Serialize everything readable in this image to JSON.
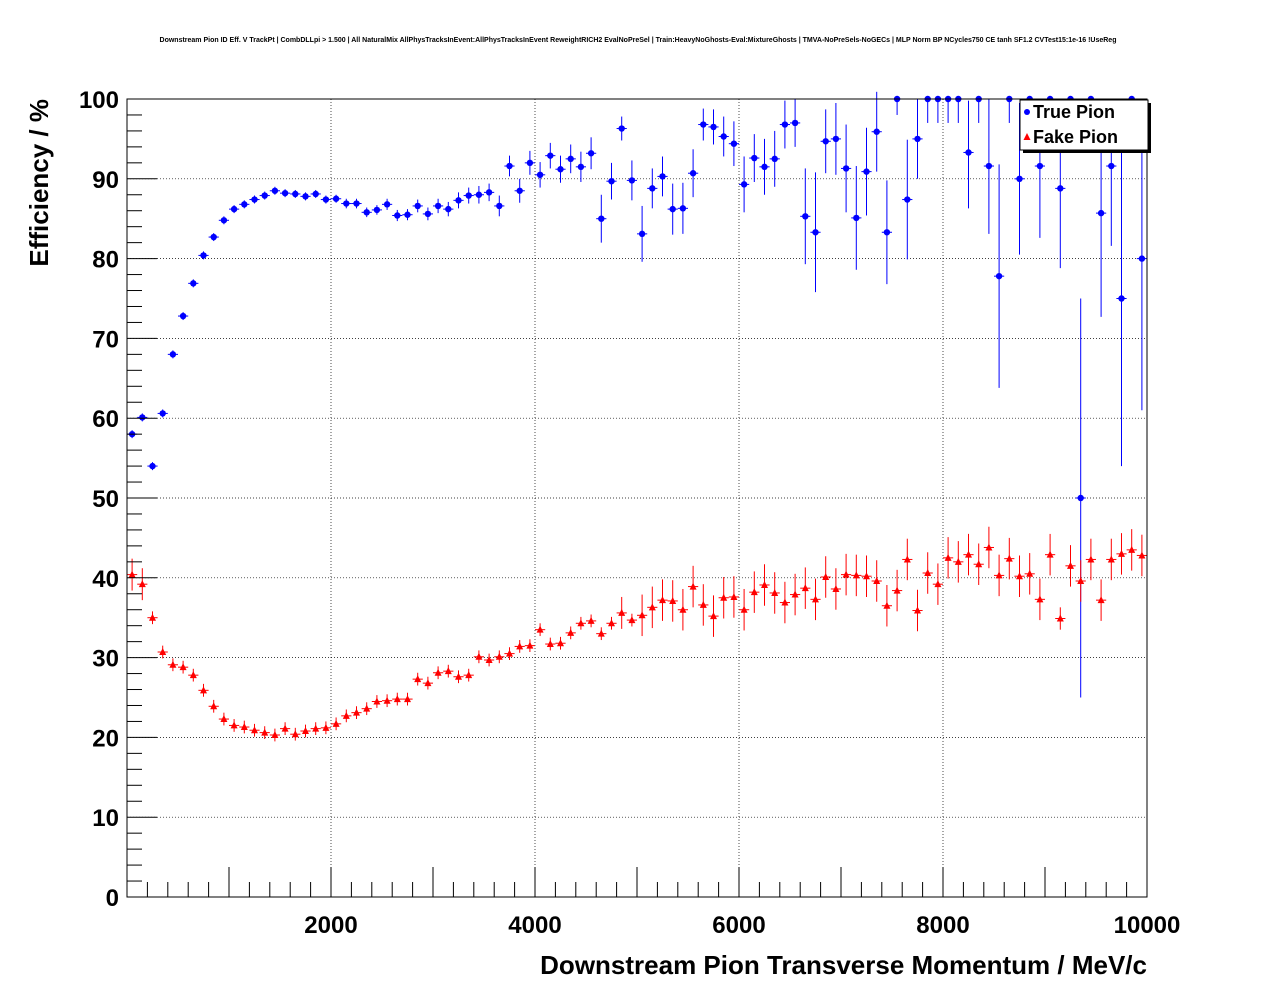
{
  "chart_data": {
    "type": "scatter",
    "title": "Downstream Pion ID Eff. V TrackPt | CombDLLpi > 1.500 | All NaturalMix AllPhysTracksInEvent:AllPhysTracksInEvent ReweightRICH2 EvalNoPreSel | Train:HeavyNoGhosts-Eval:MixtureGhosts | TMVA-NoPreSels-NoGECs | MLP Norm BP NCycles750 CE tanh SF1.2 CVTest15:1e-16 !UseReg",
    "xlabel": "Downstream Pion Transverse Momentum / MeV/c",
    "ylabel": "Efficiency / %",
    "xlim": [
      0,
      10000
    ],
    "ylim": [
      0,
      100
    ],
    "x_ticks": [
      2000,
      4000,
      6000,
      8000,
      10000
    ],
    "y_ticks": [
      0,
      10,
      20,
      30,
      40,
      50,
      60,
      70,
      80,
      90,
      100
    ],
    "grid": true,
    "legend_position": "top-right",
    "bin_width": 100,
    "x": [
      50,
      150,
      250,
      350,
      450,
      550,
      650,
      750,
      850,
      950,
      1050,
      1150,
      1250,
      1350,
      1450,
      1550,
      1650,
      1750,
      1850,
      1950,
      2050,
      2150,
      2250,
      2350,
      2450,
      2550,
      2650,
      2750,
      2850,
      2950,
      3050,
      3150,
      3250,
      3350,
      3450,
      3550,
      3650,
      3750,
      3850,
      3950,
      4050,
      4150,
      4250,
      4350,
      4450,
      4550,
      4650,
      4750,
      4850,
      4950,
      5050,
      5150,
      5250,
      5350,
      5450,
      5550,
      5650,
      5750,
      5850,
      5950,
      6050,
      6150,
      6250,
      6350,
      6450,
      6550,
      6650,
      6750,
      6850,
      6950,
      7050,
      7150,
      7250,
      7350,
      7450,
      7550,
      7650,
      7750,
      7850,
      7950,
      8050,
      8150,
      8250,
      8350,
      8450,
      8550,
      8650,
      8750,
      8850,
      8950,
      9050,
      9150,
      9250,
      9350,
      9450,
      9550,
      9650,
      9750,
      9850,
      9950
    ],
    "series": [
      {
        "name": "True Pion",
        "color": "#0000ff",
        "marker": "circle",
        "values": [
          58,
          60.1,
          54,
          60.6,
          68,
          72.8,
          76.9,
          80.4,
          82.7,
          84.8,
          86.2,
          86.8,
          87.4,
          87.9,
          88.5,
          88.2,
          88.1,
          87.8,
          88.1,
          87.4,
          87.5,
          86.9,
          86.9,
          85.8,
          86.1,
          86.8,
          85.4,
          85.5,
          86.6,
          85.6,
          86.6,
          86.2,
          87.3,
          87.9,
          88,
          88.3,
          86.6,
          91.6,
          88.5,
          92,
          90.5,
          92.9,
          91.2,
          92.5,
          91.5,
          93.2,
          85,
          89.7,
          96.3,
          89.8,
          83.1,
          88.8,
          90.3,
          86.2,
          86.3,
          90.7,
          96.8,
          96.5,
          95.3,
          94.4,
          89.3,
          92.6,
          91.5,
          92.5,
          96.8,
          97,
          85.3,
          83.3,
          94.7,
          95,
          91.3,
          85.1,
          90.9,
          95.9,
          83.3,
          100,
          87.4,
          95,
          100,
          100,
          100,
          100,
          93.3,
          100,
          91.6,
          77.8,
          100,
          90,
          100,
          91.6,
          100,
          88.8,
          100,
          50,
          100,
          85.7,
          91.6,
          75,
          100,
          80
        ],
        "err_low": [
          0.5,
          0.5,
          0.5,
          0.5,
          0.5,
          0.5,
          0.5,
          0.5,
          0.5,
          0.5,
          0.5,
          0.5,
          0.5,
          0.5,
          0.5,
          0.5,
          0.5,
          0.5,
          0.5,
          0.5,
          0.5,
          0.6,
          0.6,
          0.6,
          0.6,
          0.7,
          0.7,
          0.7,
          0.8,
          0.8,
          0.9,
          0.9,
          1,
          1,
          1.1,
          1.1,
          1.3,
          1.3,
          1.5,
          1.5,
          1.6,
          1.6,
          1.7,
          1.8,
          1.9,
          2,
          3,
          2.3,
          1.5,
          2.5,
          3.5,
          2.5,
          2.5,
          3.2,
          3.2,
          3,
          2,
          2.2,
          2.5,
          2.8,
          3.5,
          3,
          3.5,
          3.5,
          3,
          3,
          6,
          7.5,
          4,
          4.5,
          5.5,
          6.5,
          5.5,
          5,
          6.5,
          2,
          7.5,
          5,
          3,
          3,
          3,
          3,
          7,
          3,
          8.5,
          14,
          3,
          9.5,
          3,
          9,
          3,
          10,
          3,
          25,
          3,
          13,
          10,
          21,
          3,
          19
        ],
        "err_high": [
          0.5,
          0.5,
          0.5,
          0.5,
          0.5,
          0.5,
          0.5,
          0.5,
          0.5,
          0.5,
          0.5,
          0.5,
          0.5,
          0.5,
          0.5,
          0.5,
          0.5,
          0.5,
          0.5,
          0.5,
          0.5,
          0.6,
          0.6,
          0.6,
          0.6,
          0.7,
          0.7,
          0.7,
          0.8,
          0.8,
          0.9,
          0.9,
          1,
          1,
          1.1,
          1.1,
          1.3,
          1.3,
          1.5,
          1.5,
          1.6,
          1.6,
          1.7,
          1.8,
          1.9,
          2,
          3,
          2.3,
          1.5,
          2.5,
          3.5,
          2.5,
          2.5,
          3.2,
          3.2,
          3,
          2,
          2.2,
          2.5,
          2.8,
          3.5,
          3,
          3.5,
          3.5,
          3,
          3,
          6,
          7.5,
          4,
          4.5,
          5.5,
          6.5,
          5.5,
          5,
          6.5,
          0,
          7.5,
          5,
          0,
          0,
          0,
          0,
          6.5,
          0,
          8.4,
          14,
          0,
          9.5,
          0,
          8.4,
          0,
          10,
          0,
          25,
          0,
          13,
          8.4,
          21,
          0,
          19
        ]
      },
      {
        "name": "Fake Pion",
        "color": "#ff0000",
        "marker": "triangle",
        "values": [
          40.4,
          39.2,
          35,
          30.7,
          29.1,
          28.8,
          27.8,
          25.9,
          23.9,
          22.3,
          21.5,
          21.3,
          20.9,
          20.6,
          20.3,
          21.1,
          20.4,
          20.8,
          21.1,
          21.2,
          21.7,
          22.7,
          23.1,
          23.6,
          24.5,
          24.6,
          24.8,
          24.8,
          27.3,
          26.8,
          28.1,
          28.3,
          27.6,
          27.8,
          30.1,
          29.7,
          30.1,
          30.5,
          31.4,
          31.5,
          33.5,
          31.7,
          31.8,
          33.1,
          34.3,
          34.6,
          33,
          34.3,
          35.6,
          34.7,
          35.3,
          36.3,
          37.2,
          37.1,
          36,
          38.9,
          36.6,
          35.2,
          37.5,
          37.6,
          36,
          38.2,
          39.1,
          38.1,
          36.9,
          37.9,
          38.7,
          37.3,
          40.1,
          38.6,
          40.4,
          40.3,
          40.2,
          39.6,
          36.5,
          38.4,
          42.3,
          35.9,
          40.6,
          39.2,
          42.5,
          42,
          42.9,
          41.7,
          43.8,
          40.3,
          42.4,
          40.2,
          40.5,
          37.3,
          42.9,
          34.9,
          41.5,
          39.6,
          42.3,
          37.2,
          42.3,
          43,
          43.5,
          42.8
        ]
      }
    ],
    "legend": [
      "True Pion",
      "Fake Pion"
    ]
  }
}
